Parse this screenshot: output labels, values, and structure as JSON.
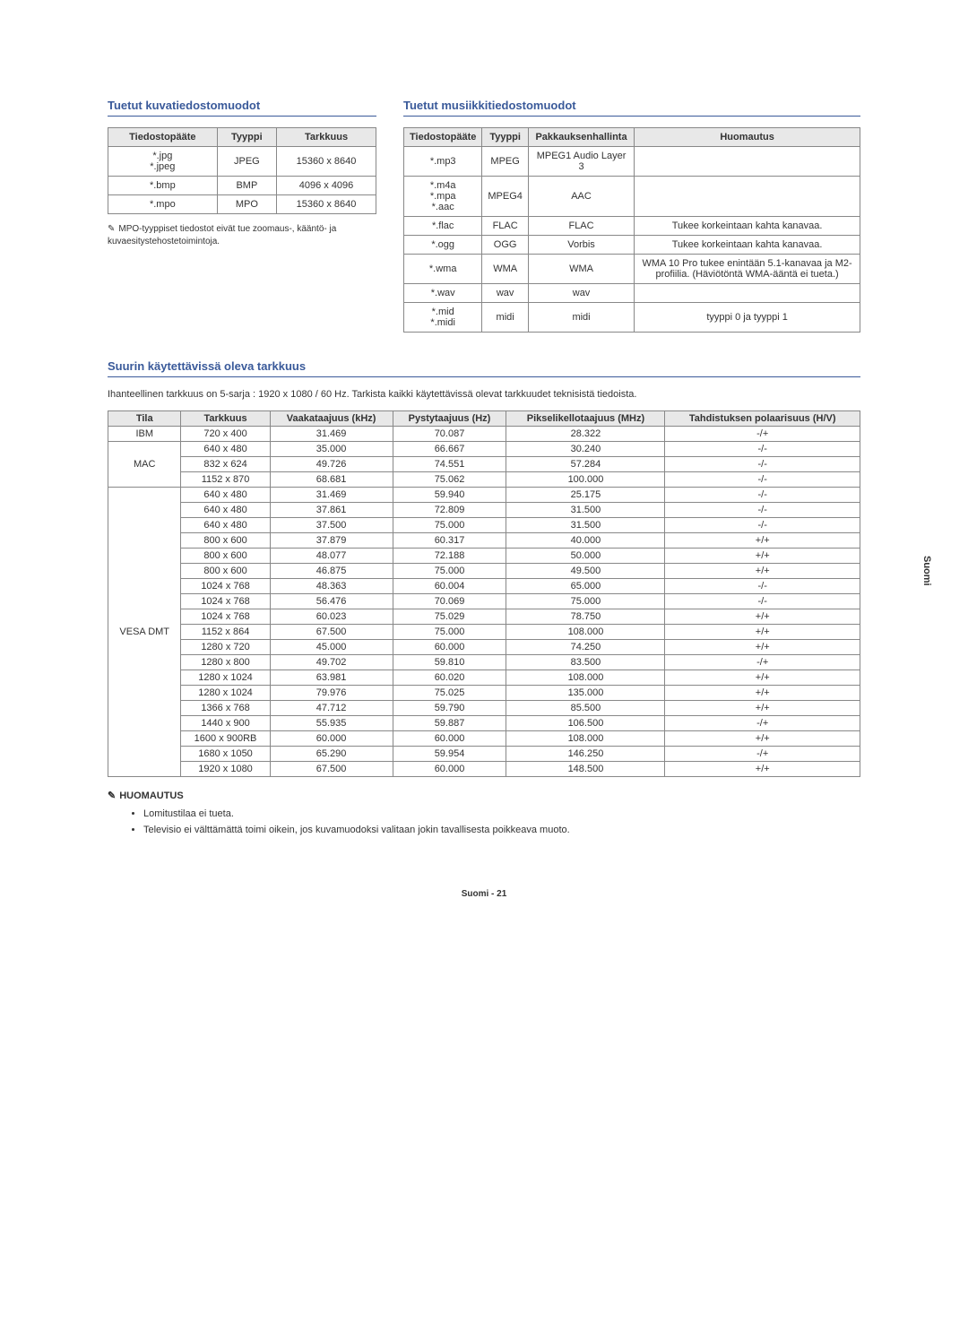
{
  "page": {
    "side_tab": "Suomi",
    "footer": "Suomi - 21"
  },
  "image_formats": {
    "heading": "Tuetut kuvatiedostomuodot",
    "columns": [
      "Tiedostopääte",
      "Tyyppi",
      "Tarkkuus"
    ],
    "rows": [
      [
        "*.jpg\n*.jpeg",
        "JPEG",
        "15360 x 8640"
      ],
      [
        "*.bmp",
        "BMP",
        "4096 x 4096"
      ],
      [
        "*.mpo",
        "MPO",
        "15360 x 8640"
      ]
    ],
    "note": "MPO-tyyppiset tiedostot eivät tue zoomaus-, kääntö- ja kuvaesitystehostetoimintoja."
  },
  "music_formats": {
    "heading": "Tuetut musiikkitiedostomuodot",
    "columns": [
      "Tiedostopääte",
      "Tyyppi",
      "Pakkauksenhallinta",
      "Huomautus"
    ],
    "rows": [
      {
        "ext": "*.mp3",
        "type": "MPEG",
        "codec": "MPEG1 Audio Layer 3",
        "note": ""
      },
      {
        "ext": "*.m4a\n*.mpa\n*.aac",
        "type": "MPEG4",
        "codec": "AAC",
        "note": ""
      },
      {
        "ext": "*.flac",
        "type": "FLAC",
        "codec": "FLAC",
        "note": "Tukee korkeintaan kahta kanavaa."
      },
      {
        "ext": "*.ogg",
        "type": "OGG",
        "codec": "Vorbis",
        "note": "Tukee korkeintaan kahta kanavaa."
      },
      {
        "ext": "*.wma",
        "type": "WMA",
        "codec": "WMA",
        "note": "WMA 10 Pro tukee enintään 5.1-kanavaa ja M2-profiilia. (Häviötöntä WMA-ääntä ei tueta.)"
      },
      {
        "ext": "*.wav",
        "type": "wav",
        "codec": "wav",
        "note": ""
      },
      {
        "ext": "*.mid\n*.midi",
        "type": "midi",
        "codec": "midi",
        "note": "tyyppi 0 ja tyyppi 1"
      }
    ]
  },
  "resolution": {
    "heading": "Suurin käytettävissä oleva tarkkuus",
    "intro": "Ihanteellinen tarkkuus on 5-sarja : 1920 x 1080 / 60 Hz. Tarkista kaikki käytettävissä olevat tarkkuudet teknisistä tiedoista.",
    "columns": [
      "Tila",
      "Tarkkuus",
      "Vaakataajuus (kHz)",
      "Pystytaajuus (Hz)",
      "Pikselikellotaajuus (MHz)",
      "Tahdistuksen polaarisuus (H/V)"
    ],
    "groups": [
      {
        "mode": "IBM",
        "rows": [
          [
            "720 x 400",
            "31.469",
            "70.087",
            "28.322",
            "-/+"
          ]
        ]
      },
      {
        "mode": "MAC",
        "rows": [
          [
            "640 x 480",
            "35.000",
            "66.667",
            "30.240",
            "-/-"
          ],
          [
            "832 x 624",
            "49.726",
            "74.551",
            "57.284",
            "-/-"
          ],
          [
            "1152 x 870",
            "68.681",
            "75.062",
            "100.000",
            "-/-"
          ]
        ]
      },
      {
        "mode": "VESA DMT",
        "rows": [
          [
            "640 x 480",
            "31.469",
            "59.940",
            "25.175",
            "-/-"
          ],
          [
            "640 x 480",
            "37.861",
            "72.809",
            "31.500",
            "-/-"
          ],
          [
            "640 x 480",
            "37.500",
            "75.000",
            "31.500",
            "-/-"
          ],
          [
            "800 x 600",
            "37.879",
            "60.317",
            "40.000",
            "+/+"
          ],
          [
            "800 x 600",
            "48.077",
            "72.188",
            "50.000",
            "+/+"
          ],
          [
            "800 x 600",
            "46.875",
            "75.000",
            "49.500",
            "+/+"
          ],
          [
            "1024 x 768",
            "48.363",
            "60.004",
            "65.000",
            "-/-"
          ],
          [
            "1024 x 768",
            "56.476",
            "70.069",
            "75.000",
            "-/-"
          ],
          [
            "1024 x 768",
            "60.023",
            "75.029",
            "78.750",
            "+/+"
          ],
          [
            "1152 x 864",
            "67.500",
            "75.000",
            "108.000",
            "+/+"
          ],
          [
            "1280 x 720",
            "45.000",
            "60.000",
            "74.250",
            "+/+"
          ],
          [
            "1280 x 800",
            "49.702",
            "59.810",
            "83.500",
            "-/+"
          ],
          [
            "1280 x 1024",
            "63.981",
            "60.020",
            "108.000",
            "+/+"
          ],
          [
            "1280 x 1024",
            "79.976",
            "75.025",
            "135.000",
            "+/+"
          ],
          [
            "1366 x 768",
            "47.712",
            "59.790",
            "85.500",
            "+/+"
          ],
          [
            "1440 x 900",
            "55.935",
            "59.887",
            "106.500",
            "-/+"
          ],
          [
            "1600 x 900RB",
            "60.000",
            "60.000",
            "108.000",
            "+/+"
          ],
          [
            "1680 x 1050",
            "65.290",
            "59.954",
            "146.250",
            "-/+"
          ],
          [
            "1920 x 1080",
            "67.500",
            "60.000",
            "148.500",
            "+/+"
          ]
        ]
      }
    ],
    "notes_heading": "HUOMAUTUS",
    "notes": [
      "Lomitustilaa ei tueta.",
      "Televisio ei välttämättä toimi oikein, jos kuvamuodoksi valitaan jokin tavallisesta poikkeava muoto."
    ]
  },
  "styling": {
    "heading_color": "#3a5a9a",
    "border_color": "#888888",
    "th_background": "#e8e8e8",
    "body_font_size": 11,
    "heading_font_size": 13
  }
}
